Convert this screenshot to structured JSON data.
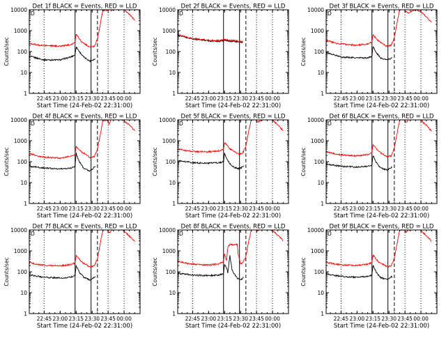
{
  "chart_data": {
    "type": "line",
    "grid_rows": 3,
    "grid_cols": 3,
    "yscale": "log",
    "ylim": [
      1,
      10000
    ],
    "ylabel": "Counts/sec",
    "xlabel": "Start Time (24-Feb-02 22:31:00)",
    "xlim": [
      "22:31",
      "00:15"
    ],
    "ytick_labels": [
      "1",
      "10",
      "100",
      "1000",
      "10000"
    ],
    "xtick_labels": [
      "22:45",
      "23:00",
      "23:15",
      "23:30",
      "23:45",
      "00:00"
    ],
    "colors": {
      "events": "#000000",
      "lld": "#ff0000"
    },
    "markers": {
      "dotted": [
        "22:45",
        "23:45",
        "00:00"
      ],
      "solid": [
        "23:14",
        "23:29"
      ],
      "dashed": [
        "23:35"
      ]
    },
    "panels": [
      {
        "title": "Det 1f BLACK = Events, RED = LLD",
        "mark": "D",
        "series": [
          {
            "name": "Events",
            "color": "#000000",
            "x": [
              "22:31",
              "22:45",
              "23:00",
              "23:10",
              "23:14",
              "23:15",
              "23:18",
              "23:22",
              "23:28",
              "23:33"
            ],
            "y": [
              60,
              40,
              40,
              55,
              70,
              170,
              100,
              55,
              35,
              45
            ]
          },
          {
            "name": "LLD",
            "color": "#ff0000",
            "x": [
              "22:31",
              "22:40",
              "22:50",
              "23:00",
              "23:10",
              "23:14",
              "23:15",
              "23:20",
              "23:28",
              "23:32",
              "23:35",
              "23:38",
              "23:40",
              "23:44",
              "23:46",
              "23:48",
              "23:52",
              "23:55",
              "00:00",
              "00:06",
              "00:10"
            ],
            "y": [
              250,
              200,
              190,
              180,
              220,
              270,
              700,
              300,
              160,
              180,
              400,
              2500,
              9000,
              10000,
              12000,
              9000,
              14000,
              12000,
              10000,
              5500,
              3000
            ]
          }
        ]
      },
      {
        "title": "Det 2f BLACK = Events, RED = LLD",
        "mark": "D",
        "series": [
          {
            "name": "Events",
            "color": "#000000",
            "x": [
              "22:31",
              "22:45",
              "23:00",
              "23:10",
              "23:15",
              "23:25",
              "23:32"
            ],
            "y": [
              600,
              400,
              330,
              310,
              340,
              300,
              270
            ]
          },
          {
            "name": "LLD",
            "color": "#ff0000",
            "x": [
              "22:31",
              "22:45",
              "23:00",
              "23:10",
              "23:15",
              "23:25",
              "23:32"
            ],
            "y": [
              650,
              420,
              350,
              330,
              370,
              330,
              300
            ]
          }
        ]
      },
      {
        "title": "Det 3f BLACK = Events, RED = LLD",
        "mark": "D",
        "series": [
          {
            "name": "Events",
            "color": "#000000",
            "x": [
              "22:31",
              "22:45",
              "23:00",
              "23:10",
              "23:14",
              "23:15",
              "23:18",
              "23:22",
              "23:28",
              "23:33"
            ],
            "y": [
              90,
              55,
              50,
              50,
              60,
              170,
              90,
              50,
              40,
              50
            ]
          },
          {
            "name": "LLD",
            "color": "#ff0000",
            "x": [
              "22:31",
              "22:40",
              "22:50",
              "23:00",
              "23:10",
              "23:14",
              "23:15",
              "23:20",
              "23:28",
              "23:32",
              "23:35",
              "23:38",
              "23:40",
              "23:44",
              "23:46",
              "23:48",
              "23:52",
              "23:55",
              "00:00",
              "00:06",
              "00:10"
            ],
            "y": [
              350,
              250,
              220,
              200,
              230,
              280,
              650,
              320,
              180,
              200,
              450,
              3000,
              10000,
              11000,
              8000,
              7000,
              9000,
              10000,
              8000,
              4000,
              2500
            ]
          }
        ]
      },
      {
        "title": "Det 4f BLACK = Events, RED = LLD",
        "mark": "D",
        "series": [
          {
            "name": "Events",
            "color": "#000000",
            "x": [
              "22:31",
              "22:45",
              "23:00",
              "23:10",
              "23:14",
              "23:15",
              "23:18",
              "23:22",
              "23:28",
              "23:33"
            ],
            "y": [
              60,
              50,
              45,
              50,
              60,
              250,
              100,
              50,
              35,
              60
            ]
          },
          {
            "name": "LLD",
            "color": "#ff0000",
            "x": [
              "22:31",
              "22:40",
              "22:50",
              "23:00",
              "23:10",
              "23:14",
              "23:15",
              "23:20",
              "23:28",
              "23:32",
              "23:35",
              "23:38",
              "23:40",
              "23:44",
              "23:46",
              "23:48",
              "23:52",
              "23:55",
              "00:00",
              "00:06",
              "00:10"
            ],
            "y": [
              250,
              180,
              160,
              150,
              180,
              230,
              550,
              300,
              160,
              170,
              400,
              2500,
              9000,
              10000,
              6500,
              11000,
              12000,
              11000,
              9000,
              5000,
              3000
            ]
          }
        ]
      },
      {
        "title": "Det 5f BLACK = Events, RED = LLD",
        "mark": "D",
        "series": [
          {
            "name": "Events",
            "color": "#000000",
            "x": [
              "22:31",
              "22:45",
              "23:00",
              "23:10",
              "23:14",
              "23:15",
              "23:18",
              "23:22",
              "23:28",
              "23:33"
            ],
            "y": [
              110,
              90,
              85,
              90,
              100,
              250,
              110,
              60,
              45,
              60
            ]
          },
          {
            "name": "LLD",
            "color": "#ff0000",
            "x": [
              "22:31",
              "22:40",
              "22:50",
              "23:00",
              "23:10",
              "23:14",
              "23:15",
              "23:20",
              "23:28",
              "23:32",
              "23:35",
              "23:38",
              "23:40",
              "23:44",
              "23:46",
              "23:48",
              "23:52",
              "23:55",
              "00:00",
              "00:06",
              "00:10"
            ],
            "y": [
              400,
              330,
              300,
              300,
              330,
              400,
              800,
              420,
              230,
              260,
              550,
              3500,
              10000,
              11000,
              8000,
              9000,
              11000,
              12000,
              10000,
              5000,
              3000
            ]
          }
        ]
      },
      {
        "title": "Det 6f BLACK = Events, RED = LLD",
        "mark": "D",
        "series": [
          {
            "name": "Events",
            "color": "#000000",
            "x": [
              "22:31",
              "22:45",
              "23:00",
              "23:10",
              "23:14",
              "23:15",
              "23:18",
              "23:22",
              "23:28",
              "23:33"
            ],
            "y": [
              75,
              60,
              55,
              60,
              70,
              200,
              90,
              50,
              40,
              55
            ]
          },
          {
            "name": "LLD",
            "color": "#ff0000",
            "x": [
              "22:31",
              "22:40",
              "22:50",
              "23:00",
              "23:10",
              "23:14",
              "23:15",
              "23:20",
              "23:28",
              "23:32",
              "23:35",
              "23:38",
              "23:40",
              "23:44",
              "23:46",
              "23:48",
              "23:52",
              "23:55",
              "00:00",
              "00:06",
              "00:10"
            ],
            "y": [
              300,
              230,
              200,
              190,
              220,
              270,
              650,
              320,
              170,
              190,
              450,
              3000,
              10000,
              11000,
              7500,
              10000,
              11000,
              12000,
              9500,
              5000,
              2800
            ]
          }
        ]
      },
      {
        "title": "Det 7f BLACK = Events, RED = LLD",
        "mark": "D",
        "series": [
          {
            "name": "Events",
            "color": "#000000",
            "x": [
              "22:31",
              "22:45",
              "23:00",
              "23:10",
              "23:14",
              "23:15",
              "23:18",
              "23:22",
              "23:28",
              "23:33"
            ],
            "y": [
              70,
              55,
              50,
              55,
              65,
              200,
              95,
              55,
              40,
              60
            ]
          },
          {
            "name": "LLD",
            "color": "#ff0000",
            "x": [
              "22:31",
              "22:40",
              "22:50",
              "23:00",
              "23:10",
              "23:14",
              "23:15",
              "23:20",
              "23:28",
              "23:32",
              "23:35",
              "23:38",
              "23:40",
              "23:44",
              "23:46",
              "23:48",
              "23:52",
              "23:55",
              "00:00",
              "00:06",
              "00:10"
            ],
            "y": [
              280,
              220,
              200,
              190,
              220,
              270,
              600,
              300,
              170,
              190,
              420,
              2800,
              9500,
              10500,
              7000,
              10000,
              11500,
              12000,
              9000,
              4500,
              2800
            ]
          }
        ]
      },
      {
        "title": "Det 8f BLACK = Events, RED = LLD",
        "mark": "D",
        "series": [
          {
            "name": "Events",
            "color": "#000000",
            "x": [
              "22:31",
              "22:45",
              "23:00",
              "23:10",
              "23:14",
              "23:15",
              "23:17",
              "23:18",
              "23:20",
              "23:22",
              "23:24",
              "23:27",
              "23:30",
              "23:33"
            ],
            "y": [
              85,
              70,
              65,
              70,
              80,
              230,
              150,
              90,
              600,
              120,
              80,
              50,
              40,
              55
            ]
          },
          {
            "name": "LLD",
            "color": "#ff0000",
            "x": [
              "22:31",
              "22:40",
              "22:50",
              "23:00",
              "23:10",
              "23:14",
              "23:15",
              "23:16",
              "23:17",
              "23:18",
              "23:20",
              "23:24",
              "23:27",
              "23:28",
              "23:30",
              "23:32",
              "23:35",
              "23:38",
              "23:40",
              "23:44",
              "23:46",
              "23:48",
              "23:52",
              "23:55",
              "00:00",
              "00:06",
              "00:10"
            ],
            "y": [
              320,
              250,
              220,
              210,
              240,
              300,
              700,
              450,
              350,
              1500,
              2000,
              2000,
              2000,
              600,
              250,
              260,
              550,
              3500,
              10000,
              11000,
              9000,
              11000,
              12000,
              11000,
              9500,
              5000,
              3000
            ]
          }
        ]
      },
      {
        "title": "Det 9f BLACK = Events, RED = LLD",
        "mark": "D",
        "series": [
          {
            "name": "Events",
            "color": "#000000",
            "x": [
              "22:31",
              "22:45",
              "23:00",
              "23:10",
              "23:14",
              "23:15",
              "23:18",
              "23:22",
              "23:28",
              "23:33"
            ],
            "y": [
              80,
              60,
              55,
              60,
              70,
              210,
              95,
              55,
              42,
              60
            ]
          },
          {
            "name": "LLD",
            "color": "#ff0000",
            "x": [
              "22:31",
              "22:40",
              "22:50",
              "23:00",
              "23:10",
              "23:14",
              "23:15",
              "23:20",
              "23:28",
              "23:32",
              "23:35",
              "23:38",
              "23:40",
              "23:44",
              "23:46",
              "23:48",
              "23:52",
              "23:55",
              "00:00",
              "00:06",
              "00:10"
            ],
            "y": [
              290,
              230,
              210,
              200,
              230,
              280,
              620,
              310,
              175,
              195,
              430,
              2900,
              9800,
              10800,
              8000,
              10000,
              11500,
              12000,
              9500,
              4800,
              2900
            ]
          }
        ]
      }
    ]
  }
}
